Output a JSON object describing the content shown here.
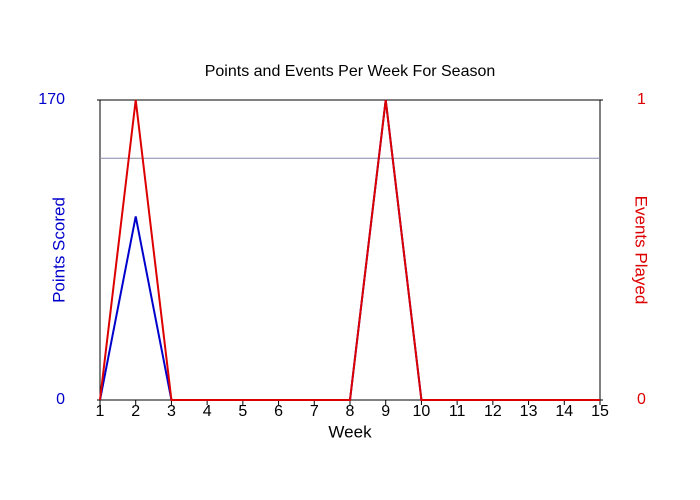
{
  "chart_data": {
    "type": "line",
    "title": "Points and Events Per Week For Season",
    "x_label": "Week",
    "y_label": "Points Scored",
    "y2_label": "Events Played",
    "x": [
      1,
      2,
      3,
      4,
      5,
      6,
      7,
      8,
      9,
      10,
      11,
      12,
      13,
      14,
      15
    ],
    "series": [
      {
        "name": "Points Scored",
        "color": "#0000cc",
        "values": [
          0,
          104,
          0,
          0,
          0,
          0,
          0,
          0,
          170,
          0,
          0,
          0,
          0,
          0,
          0
        ]
      },
      {
        "name": "Events Played",
        "color": "#dd0000",
        "axis": "y2",
        "values": [
          0,
          1,
          0,
          0,
          0,
          0,
          0,
          0,
          1,
          0,
          0,
          0,
          0,
          0,
          0
        ]
      }
    ],
    "reference_line": {
      "value": 137,
      "color": "#8888aa"
    },
    "xlim": [
      1,
      15
    ],
    "xticks": [
      1,
      2,
      3,
      4,
      5,
      6,
      7,
      8,
      9,
      10,
      11,
      12,
      13,
      14,
      15
    ],
    "ylim": [
      0,
      170
    ],
    "yticks": [
      0,
      170
    ],
    "y2lim": [
      0,
      1
    ],
    "y2ticks": [
      0,
      1
    ]
  }
}
